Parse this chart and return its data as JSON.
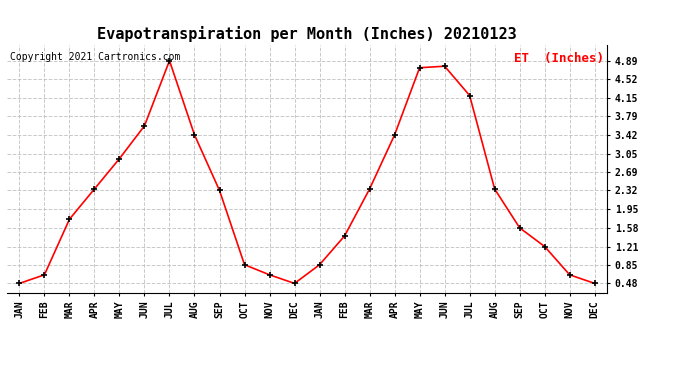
{
  "title": "Evapotranspiration per Month (Inches) 20210123",
  "copyright": "Copyright 2021 Cartronics.com",
  "legend_label": "ET  (Inches)",
  "x_labels": [
    "JAN",
    "FEB",
    "MAR",
    "APR",
    "MAY",
    "JUN",
    "JUL",
    "AUG",
    "SEP",
    "OCT",
    "NOV",
    "DEC",
    "JAN",
    "FEB",
    "MAR",
    "APR",
    "MAY",
    "JUN",
    "JUL",
    "AUG",
    "SEP",
    "OCT",
    "NOV",
    "DEC"
  ],
  "y_values": [
    0.48,
    0.65,
    1.75,
    2.35,
    2.95,
    3.6,
    4.89,
    3.42,
    2.32,
    0.85,
    0.65,
    0.48,
    0.85,
    1.42,
    2.35,
    3.42,
    4.75,
    4.78,
    4.2,
    2.35,
    1.58,
    1.21,
    0.65,
    0.48
  ],
  "y_ticks": [
    0.48,
    0.85,
    1.21,
    1.58,
    1.95,
    2.32,
    2.69,
    3.05,
    3.42,
    3.79,
    4.15,
    4.52,
    4.89
  ],
  "line_color": "red",
  "marker": "+",
  "marker_color": "black",
  "grid_color": "#bbbbbb",
  "title_fontsize": 11,
  "copyright_fontsize": 7,
  "legend_fontsize": 9,
  "tick_fontsize": 7,
  "background_color": "#ffffff"
}
